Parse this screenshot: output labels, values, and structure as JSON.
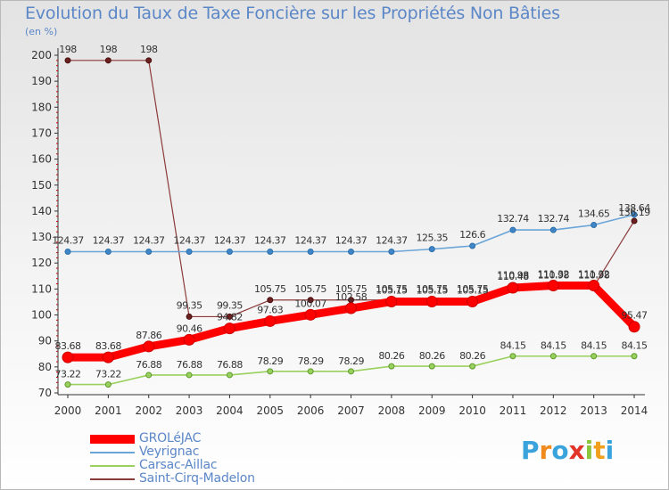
{
  "title": "Evolution du Taux de Taxe Foncière sur les Propriétés Non Bâties",
  "unit": "(en %)",
  "logo": {
    "letters": [
      "P",
      "r",
      "o",
      "x",
      "i",
      "t",
      "i"
    ],
    "colors": [
      "#3aa3dc",
      "#f08a1c",
      "#3aa3dc",
      "#e2352a",
      "#8cc63f",
      "#f0a01c",
      "#3aa3dc"
    ]
  },
  "chart_data": {
    "type": "line",
    "title": "Evolution du Taux de Taxe Foncière sur les Propriétés Non Bâties",
    "ylabel": "(en %)",
    "xlabel": "",
    "x": [
      2000,
      2001,
      2002,
      2003,
      2004,
      2005,
      2006,
      2007,
      2008,
      2009,
      2010,
      2011,
      2012,
      2013,
      2014
    ],
    "ylim": [
      70,
      200
    ],
    "yticks": [
      70,
      80,
      90,
      100,
      110,
      120,
      130,
      140,
      150,
      160,
      170,
      180,
      190,
      200
    ],
    "grid": false,
    "legend": "bottom-left",
    "series": [
      {
        "name": "GROLéJAC",
        "color": "#ff0000",
        "values": [
          83.68,
          83.68,
          87.86,
          90.46,
          94.82,
          97.63,
          100.07,
          102.58,
          105.15,
          105.15,
          105.15,
          110.48,
          111.32,
          111.32,
          95.47
        ],
        "labels": [
          "83.68",
          "83.68",
          "87.86",
          "90.46",
          "94.82",
          "97.63",
          "100.07",
          "102.58",
          "105.15",
          "105.15",
          "105.15",
          "110.48",
          "111.32",
          "111.32",
          "95.47"
        ]
      },
      {
        "name": "Veyrignac",
        "color": "#6aa5d8",
        "values": [
          124.37,
          124.37,
          124.37,
          124.37,
          124.37,
          124.37,
          124.37,
          124.37,
          124.37,
          125.35,
          126.6,
          132.74,
          132.74,
          134.65,
          138.64
        ],
        "labels": [
          "124.37",
          "124.37",
          "124.37",
          "124.37",
          "124.37",
          "124.37",
          "124.37",
          "124.37",
          "124.37",
          "125.35",
          "126.6",
          "132.74",
          "132.74",
          "134.65",
          "138.64"
        ]
      },
      {
        "name": "Carsac-Aillac",
        "color": "#9ad05e",
        "values": [
          73.22,
          73.22,
          76.88,
          76.88,
          76.88,
          78.29,
          78.29,
          78.29,
          80.26,
          80.26,
          80.26,
          84.15,
          84.15,
          84.15,
          84.15
        ],
        "labels": [
          "73.22",
          "73.22",
          "76.88",
          "76.88",
          "76.88",
          "78.29",
          "78.29",
          "78.29",
          "80.26",
          "80.26",
          "80.26",
          "84.15",
          "84.15",
          "84.15",
          "84.15"
        ]
      },
      {
        "name": "Saint-Cirq-Madelon",
        "color": "#8b3a3a",
        "values": [
          198,
          198,
          198,
          99.35,
          99.35,
          105.75,
          105.75,
          105.75,
          105.75,
          105.75,
          105.75,
          110.98,
          110.98,
          110.98,
          136.19
        ],
        "labels": [
          "198",
          "198",
          "198",
          "99.35",
          "99.35",
          "105.75",
          "105.75",
          "105.75",
          "105.75",
          "105.75",
          "105.75",
          "110.98",
          "110.98",
          "110.98",
          "136.19"
        ]
      }
    ]
  }
}
